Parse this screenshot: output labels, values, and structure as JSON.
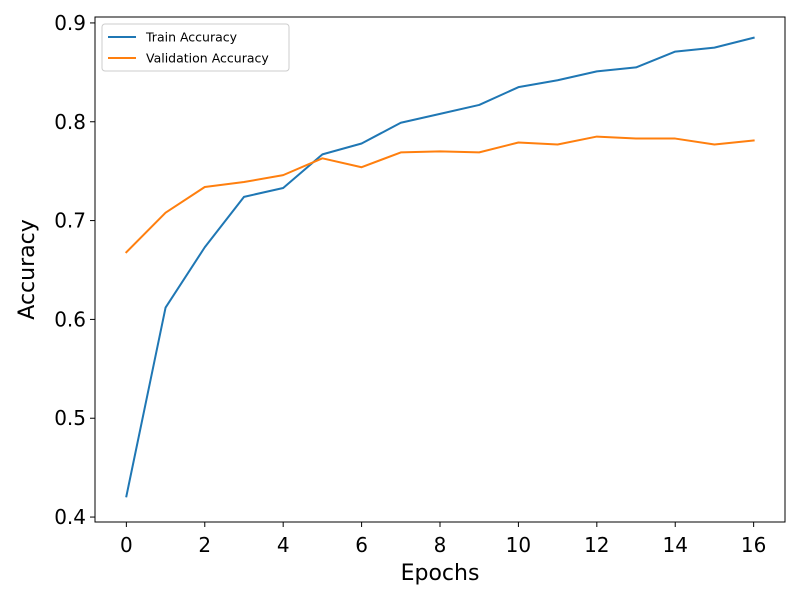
{
  "chart_data": {
    "type": "line",
    "title": "",
    "xlabel": "Epochs",
    "ylabel": "Accuracy",
    "xlim": [
      -0.8,
      16.8
    ],
    "ylim": [
      0.395,
      0.906
    ],
    "x_ticks": [
      0,
      2,
      4,
      6,
      8,
      10,
      12,
      14,
      16
    ],
    "y_ticks": [
      0.4,
      0.5,
      0.6,
      0.7,
      0.8,
      0.9
    ],
    "grid": false,
    "legend_position": "top-left",
    "x": [
      0,
      1,
      2,
      3,
      4,
      5,
      6,
      7,
      8,
      9,
      10,
      11,
      12,
      13,
      14,
      15,
      16
    ],
    "series": [
      {
        "name": "Train Accuracy",
        "color": "#1f77b4",
        "values": [
          0.421,
          0.612,
          0.673,
          0.724,
          0.733,
          0.767,
          0.778,
          0.799,
          0.808,
          0.817,
          0.835,
          0.842,
          0.851,
          0.855,
          0.871,
          0.875,
          0.885
        ]
      },
      {
        "name": "Validation Accuracy",
        "color": "#ff7f0e",
        "values": [
          0.668,
          0.708,
          0.734,
          0.739,
          0.746,
          0.763,
          0.754,
          0.769,
          0.77,
          0.769,
          0.779,
          0.777,
          0.785,
          0.783,
          0.783,
          0.777,
          0.781
        ]
      }
    ]
  }
}
